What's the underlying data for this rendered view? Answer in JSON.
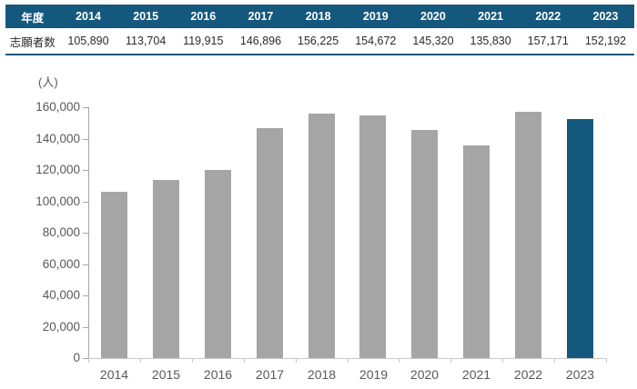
{
  "table": {
    "header_label": "年度",
    "row_label": "志願者数",
    "years": [
      "2014",
      "2015",
      "2016",
      "2017",
      "2018",
      "2019",
      "2020",
      "2021",
      "2022",
      "2023"
    ],
    "values": [
      "105,890",
      "113,704",
      "119,915",
      "146,896",
      "156,225",
      "154,672",
      "145,320",
      "135,830",
      "157,171",
      "152,192"
    ]
  },
  "chart_data": {
    "type": "bar",
    "title": "",
    "unit_label": "(人)",
    "categories": [
      "2014",
      "2015",
      "2016",
      "2017",
      "2018",
      "2019",
      "2020",
      "2021",
      "2022",
      "2023"
    ],
    "values": [
      105890,
      113704,
      119915,
      146896,
      156225,
      154672,
      145320,
      135830,
      157171,
      152192
    ],
    "xlabel": "",
    "ylabel": "(人)",
    "ylim": [
      0,
      160000
    ],
    "ytick_step": 20000,
    "grid": false,
    "legend": false,
    "bar_color": "#a5a5a5",
    "highlight_index": 9,
    "highlight_color": "#15587e"
  },
  "colors": {
    "table_header_bg": "#15587e",
    "table_border": "#15587e",
    "axis_text": "#595959",
    "table_text": "#2b2b2b"
  }
}
